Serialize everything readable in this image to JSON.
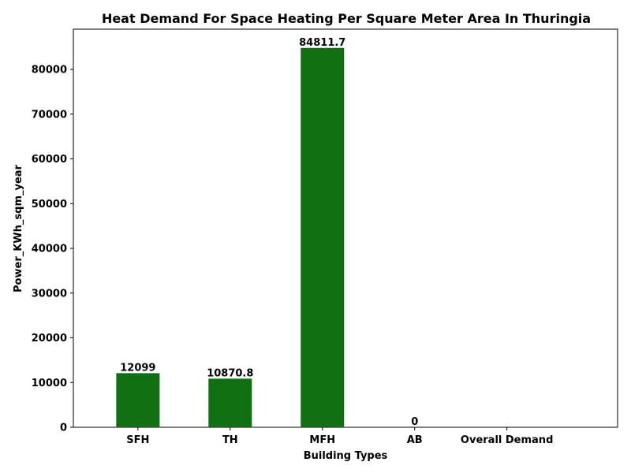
{
  "chart_data": {
    "type": "bar",
    "title": "Heat Demand For Space Heating Per Square Meter Area In Thuringia",
    "xlabel": "Building Types",
    "ylabel": "Power_KWh_sqm_year",
    "categories": [
      "SFH",
      "TH",
      "MFH",
      "AB",
      "Overall Demand"
    ],
    "values": [
      12099,
      10870.8,
      84811.7,
      0,
      null
    ],
    "value_labels": [
      "12099",
      "10870.8",
      "84811.7",
      "0",
      ""
    ],
    "ylim": [
      0,
      89000
    ],
    "yticks": [
      0,
      10000,
      20000,
      30000,
      40000,
      50000,
      60000,
      70000,
      80000
    ],
    "grid": false,
    "bar_color": "#117011"
  }
}
